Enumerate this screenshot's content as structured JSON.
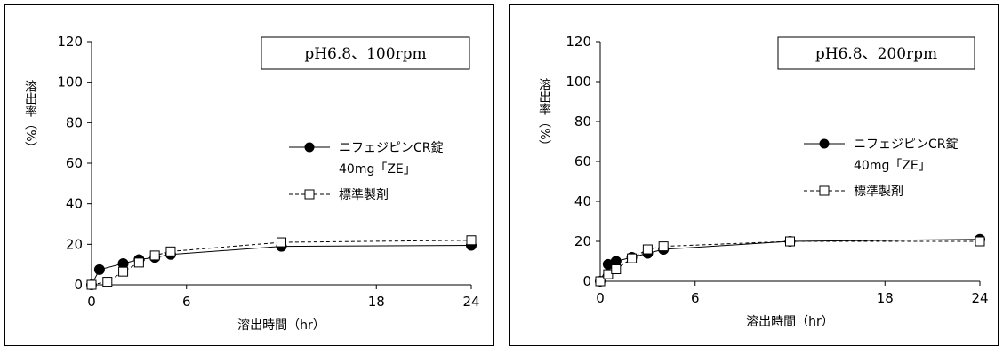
{
  "chart_data": [
    {
      "type": "line",
      "condition": "pH6.8、100rpm",
      "xlabel": "溶出時間（hr）",
      "ylabel": "溶出率（%）",
      "xlim": [
        0,
        24
      ],
      "ylim": [
        0,
        120
      ],
      "xticks": [
        "0",
        "6",
        "18",
        "24"
      ],
      "yticks": [
        "0",
        "20",
        "40",
        "60",
        "80",
        "100",
        "120"
      ],
      "grid": false,
      "legend_position": "right",
      "series": [
        {
          "name": "ニフェジピンCR錠",
          "name_line2": "40mg「ZE」",
          "marker": "filled-circle",
          "line_style": "solid",
          "x": [
            0,
            0.5,
            2,
            3,
            4,
            5,
            12,
            24
          ],
          "y": [
            0,
            7.5,
            10.5,
            12.5,
            13.5,
            15,
            19,
            19.5
          ]
        },
        {
          "name": "標準製剤",
          "marker": "open-square",
          "line_style": "dashed",
          "x": [
            0,
            1,
            2,
            3,
            4,
            5,
            12,
            24
          ],
          "y": [
            0,
            1.5,
            6.5,
            11,
            14.5,
            16.5,
            21,
            22
          ]
        }
      ]
    },
    {
      "type": "line",
      "condition": "pH6.8、200rpm",
      "xlabel": "溶出時間（hr）",
      "ylabel": "溶出率（%）",
      "xlim": [
        0,
        24
      ],
      "ylim": [
        0,
        120
      ],
      "xticks": [
        "0",
        "6",
        "18",
        "24"
      ],
      "yticks": [
        "0",
        "20",
        "40",
        "60",
        "80",
        "100",
        "120"
      ],
      "grid": false,
      "legend_position": "right",
      "series": [
        {
          "name": "ニフェジピンCR錠",
          "name_line2": "40mg「ZE」",
          "marker": "filled-circle",
          "line_style": "solid",
          "x": [
            0,
            0.5,
            1,
            2,
            3,
            4,
            12,
            24
          ],
          "y": [
            0,
            8.5,
            10,
            12,
            14,
            16,
            20,
            21
          ]
        },
        {
          "name": "標準製剤",
          "marker": "open-square",
          "line_style": "dashed",
          "x": [
            0,
            0.5,
            1,
            2,
            3,
            4,
            12,
            24
          ],
          "y": [
            0,
            3.5,
            6,
            11.5,
            16,
            17.5,
            20,
            20
          ]
        }
      ]
    }
  ]
}
